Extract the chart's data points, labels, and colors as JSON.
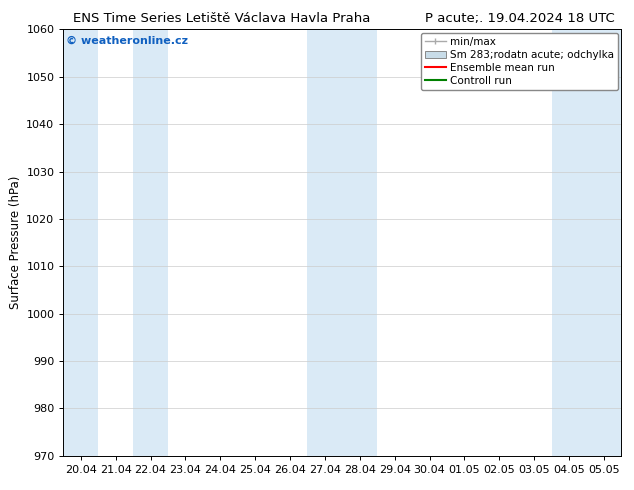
{
  "title_left": "ENS Time Series Letiště Václava Havla Praha",
  "title_right": "P acute;. 19.04.2024 18 UTC",
  "ylabel": "Surface Pressure (hPa)",
  "ylim": [
    970,
    1060
  ],
  "yticks": [
    970,
    980,
    990,
    1000,
    1010,
    1020,
    1030,
    1040,
    1050,
    1060
  ],
  "x_labels": [
    "20.04",
    "21.04",
    "22.04",
    "23.04",
    "24.04",
    "25.04",
    "26.04",
    "27.04",
    "28.04",
    "29.04",
    "30.04",
    "01.05",
    "02.05",
    "03.05",
    "04.05",
    "05.05"
  ],
  "x_values": [
    0,
    1,
    2,
    3,
    4,
    5,
    6,
    7,
    8,
    9,
    10,
    11,
    12,
    13,
    14,
    15
  ],
  "shaded_indices": [
    0,
    2,
    7,
    8,
    14,
    15
  ],
  "shaded_color": "#daeaf6",
  "bg_color": "#ffffff",
  "plot_bg_color": "#ffffff",
  "watermark": "© weatheronline.cz",
  "watermark_color": "#1060c0",
  "legend_label_minmax": "min/max",
  "legend_label_std": "Sm 283;rodatn acute; odchylka",
  "legend_label_ensemble": "Ensemble mean run",
  "legend_label_control": "Controll run",
  "legend_color_band": "#c8dce8",
  "legend_color_ensemble": "#ff0000",
  "legend_color_control": "#008000",
  "font_size_title": 9.5,
  "font_size_axis_label": 8.5,
  "font_size_tick": 8,
  "font_size_legend": 7.5,
  "font_size_watermark": 8,
  "figsize": [
    6.34,
    4.9
  ],
  "dpi": 100
}
